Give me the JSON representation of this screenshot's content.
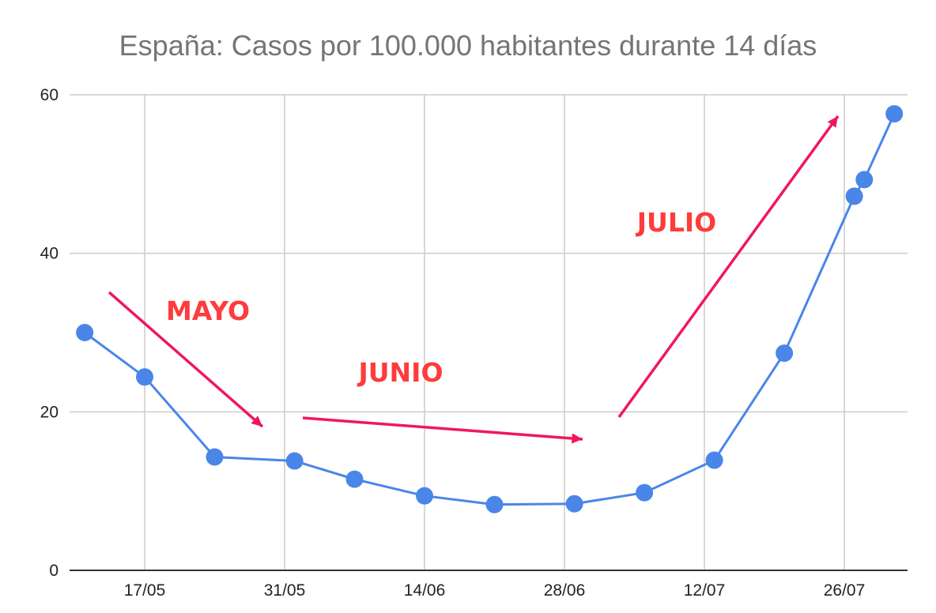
{
  "chart_data": {
    "type": "line",
    "title": "España: Casos por 100.000 habitantes durante 14 días",
    "xlabel": "",
    "ylabel": "",
    "ylim": [
      0,
      60
    ],
    "yticks": [
      "0",
      "20",
      "40",
      "60"
    ],
    "xticks": [
      "17/05",
      "31/05",
      "14/06",
      "28/06",
      "12/07",
      "26/07"
    ],
    "xtick_dates": [
      "2020-05-17",
      "2020-05-31",
      "2020-06-14",
      "2020-06-28",
      "2020-07-12",
      "2020-07-26"
    ],
    "grid": true,
    "legend": "none",
    "series": [
      {
        "color": "#4a86e8",
        "points": [
          {
            "x": "2020-05-11",
            "y": 30.0
          },
          {
            "x": "2020-05-17",
            "y": 24.4
          },
          {
            "x": "2020-05-24",
            "y": 14.3
          },
          {
            "x": "2020-06-01",
            "y": 13.8
          },
          {
            "x": "2020-06-07",
            "y": 11.5
          },
          {
            "x": "2020-06-14",
            "y": 9.4
          },
          {
            "x": "2020-06-21",
            "y": 8.3
          },
          {
            "x": "2020-06-29",
            "y": 8.4
          },
          {
            "x": "2020-07-06",
            "y": 9.8
          },
          {
            "x": "2020-07-13",
            "y": 13.9
          },
          {
            "x": "2020-07-20",
            "y": 27.4
          },
          {
            "x": "2020-07-27",
            "y": 47.2
          },
          {
            "x": "2020-07-28",
            "y": 49.3
          },
          {
            "x": "2020-07-31",
            "y": 57.6
          }
        ]
      }
    ],
    "annotations": [
      {
        "text": "MAYO",
        "color": "#ff3b3b"
      },
      {
        "text": "JUNIO",
        "color": "#ff3b3b"
      },
      {
        "text": "JULIO",
        "color": "#ff3b3b"
      }
    ],
    "arrow_color": "#f0185a"
  }
}
